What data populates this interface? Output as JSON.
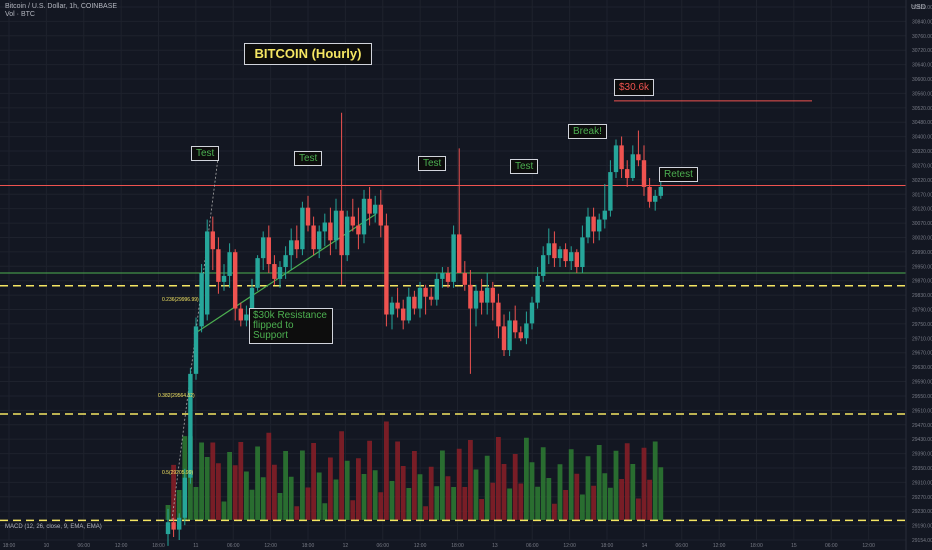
{
  "header": {
    "symbol_line": "Bitcoin / U.S. Dollar, 1h, COINBASE",
    "volume_line": "Vol · BTC",
    "currency": "USD"
  },
  "annotations": {
    "title": "BITCOIN (Hourly)",
    "price_target": "$30.6k",
    "break": "Break!",
    "retest": "Retest",
    "test": "Test",
    "support": "$30k Resistance\nflipped to\nSupport"
  },
  "fib_labels": [
    "0.236(29996.99)",
    "0.382(29564.52)",
    "0.5(29205.99)"
  ],
  "indicator_label": "MACD (12, 26, close, 9, EMA, EMA)",
  "colors": {
    "bg": "#131722",
    "up": "#26a69a",
    "down": "#ef5350",
    "vol_up": "#2e7d32",
    "vol_down": "#8b1f27",
    "resistance": "#ef5350",
    "support": "#4caf50",
    "fib": "#f5e663"
  },
  "chart_data": {
    "type": "candlestick",
    "title": "BITCOIN (Hourly)",
    "y_axis": {
      "ticks": [
        30920,
        30840,
        30760,
        30720,
        30640,
        30600,
        30560,
        30520,
        30480,
        30400,
        30320,
        30270,
        30220,
        30170,
        30120,
        30070,
        30020,
        29990,
        29950,
        29870,
        29830,
        29790,
        29750,
        29710,
        29670,
        29630,
        29590,
        29550,
        29510,
        29470,
        29430,
        29390,
        29350,
        29310,
        29270,
        29230,
        29190,
        29154
      ],
      "range": [
        29140,
        30960
      ]
    },
    "x_axis": {
      "labels": [
        "18:00",
        "10",
        "06:00",
        "12:00",
        "18:00",
        "11",
        "06:00",
        "12:00",
        "18:00",
        "12",
        "06:00",
        "12:00",
        "18:00",
        "13",
        "06:00",
        "12:00",
        "18:00",
        "14",
        "06:00",
        "12:00",
        "18:00",
        "15",
        "06:00",
        "12:00"
      ]
    },
    "levels": {
      "resistance": 30620,
      "key_level": 30335,
      "support": 30040,
      "fib_0236": 29996.99,
      "fib_0382": 29564.52,
      "fib_05": 29205.99
    },
    "candles_ohlc": [
      [
        29160,
        29245,
        29120,
        29200
      ],
      [
        29200,
        29215,
        29150,
        29175
      ],
      [
        29175,
        29230,
        29140,
        29215
      ],
      [
        29215,
        29380,
        29190,
        29350
      ],
      [
        29350,
        29720,
        29330,
        29700
      ],
      [
        29700,
        29890,
        29680,
        29860
      ],
      [
        29860,
        30070,
        29840,
        30040
      ],
      [
        29900,
        30220,
        29880,
        30180
      ],
      [
        30180,
        30230,
        30050,
        30120
      ],
      [
        30120,
        30160,
        29970,
        30010
      ],
      [
        30010,
        30070,
        29980,
        30030
      ],
      [
        30030,
        30140,
        29990,
        30110
      ],
      [
        30110,
        30120,
        29880,
        29920
      ],
      [
        29920,
        29940,
        29860,
        29880
      ],
      [
        29880,
        29930,
        29860,
        29900
      ],
      [
        29900,
        30020,
        29890,
        29990
      ],
      [
        29990,
        30100,
        29980,
        30090
      ],
      [
        30090,
        30180,
        30050,
        30160
      ],
      [
        30160,
        30200,
        30040,
        30070
      ],
      [
        30070,
        30100,
        30000,
        30020
      ],
      [
        30020,
        30080,
        29990,
        30060
      ],
      [
        30060,
        30130,
        30020,
        30100
      ],
      [
        30100,
        30190,
        30050,
        30150
      ],
      [
        30150,
        30200,
        30090,
        30120
      ],
      [
        30120,
        30280,
        30100,
        30260
      ],
      [
        30260,
        30300,
        30180,
        30200
      ],
      [
        30200,
        30230,
        30100,
        30120
      ],
      [
        30120,
        30200,
        30090,
        30180
      ],
      [
        30180,
        30240,
        30130,
        30210
      ],
      [
        30210,
        30260,
        30100,
        30150
      ],
      [
        30150,
        30290,
        30120,
        30250
      ],
      [
        30250,
        30580,
        30000,
        30100
      ],
      [
        30100,
        30250,
        30080,
        30230
      ],
      [
        30230,
        30290,
        30180,
        30200
      ],
      [
        30200,
        30260,
        30120,
        30170
      ],
      [
        30170,
        30320,
        30140,
        30290
      ],
      [
        30290,
        30330,
        30200,
        30240
      ],
      [
        30240,
        30300,
        30210,
        30270
      ],
      [
        30270,
        30320,
        30160,
        30200
      ],
      [
        30200,
        30240,
        29860,
        29900
      ],
      [
        29900,
        29960,
        29850,
        29940
      ],
      [
        29940,
        29990,
        29890,
        29920
      ],
      [
        29920,
        29950,
        29850,
        29880
      ],
      [
        29880,
        29990,
        29870,
        29960
      ],
      [
        29960,
        29980,
        29900,
        29920
      ],
      [
        29920,
        30010,
        29890,
        29990
      ],
      [
        29990,
        30000,
        29900,
        29960
      ],
      [
        29960,
        29990,
        29930,
        29950
      ],
      [
        29950,
        30040,
        29930,
        30020
      ],
      [
        30020,
        30060,
        29990,
        30040
      ],
      [
        30040,
        30060,
        29990,
        30010
      ],
      [
        30010,
        30200,
        29990,
        30170
      ],
      [
        30170,
        30460,
        30140,
        30040
      ],
      [
        30040,
        30080,
        29980,
        30000
      ],
      [
        30000,
        30050,
        29700,
        29920
      ],
      [
        29920,
        30000,
        29860,
        29980
      ],
      [
        29980,
        30020,
        29900,
        29940
      ],
      [
        29940,
        30040,
        29900,
        29990
      ],
      [
        29990,
        30010,
        29880,
        29940
      ],
      [
        29940,
        29970,
        29820,
        29860
      ],
      [
        29860,
        29900,
        29760,
        29780
      ],
      [
        29780,
        29910,
        29760,
        29880
      ],
      [
        29880,
        29930,
        29820,
        29840
      ],
      [
        29840,
        29860,
        29810,
        29820
      ],
      [
        29820,
        29910,
        29800,
        29870
      ],
      [
        29870,
        29960,
        29850,
        29940
      ],
      [
        29940,
        30060,
        29920,
        30030
      ],
      [
        30030,
        30130,
        30010,
        30100
      ],
      [
        30100,
        30190,
        30070,
        30140
      ],
      [
        30140,
        30180,
        30060,
        30090
      ],
      [
        30090,
        30130,
        30060,
        30120
      ],
      [
        30120,
        30140,
        30060,
        30080
      ],
      [
        30080,
        30130,
        30050,
        30110
      ],
      [
        30110,
        30120,
        30040,
        30060
      ],
      [
        30060,
        30200,
        30040,
        30160
      ],
      [
        30160,
        30260,
        30140,
        30230
      ],
      [
        30230,
        30260,
        30140,
        30180
      ],
      [
        30180,
        30240,
        30150,
        30220
      ],
      [
        30220,
        30340,
        30190,
        30250
      ],
      [
        30250,
        30420,
        30230,
        30380
      ],
      [
        30380,
        30490,
        30360,
        30470
      ],
      [
        30470,
        30500,
        30360,
        30390
      ],
      [
        30390,
        30420,
        30330,
        30360
      ],
      [
        30360,
        30470,
        30350,
        30440
      ],
      [
        30440,
        30520,
        30400,
        30420
      ],
      [
        30420,
        30470,
        30300,
        30330
      ],
      [
        30330,
        30360,
        30260,
        30280
      ],
      [
        30280,
        30320,
        30250,
        30300
      ],
      [
        30300,
        30370,
        30290,
        30330
      ]
    ]
  }
}
